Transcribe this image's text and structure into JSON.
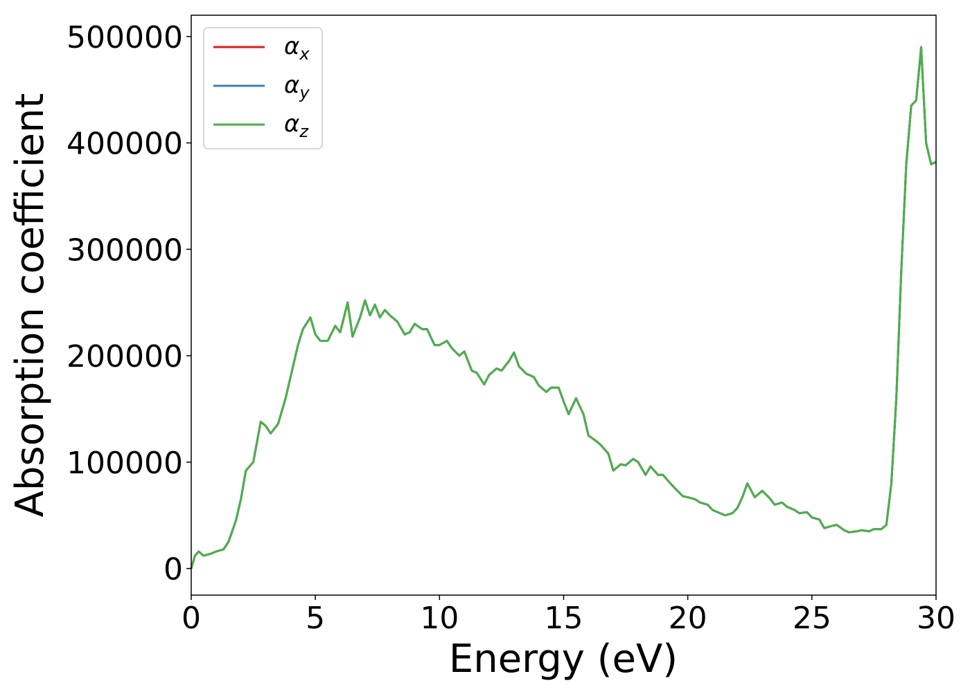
{
  "chart_data": {
    "type": "line",
    "title": "",
    "xlabel": "Energy (eV)",
    "ylabel": "Absorption coefficient",
    "xlim": [
      0,
      30
    ],
    "ylim": [
      -25000,
      520000
    ],
    "x_ticks": [
      0,
      5,
      10,
      15,
      20,
      25,
      30
    ],
    "x_tick_labels": [
      "0",
      "5",
      "10",
      "15",
      "20",
      "25",
      "30"
    ],
    "y_ticks": [
      0,
      100000,
      200000,
      300000,
      400000,
      500000
    ],
    "y_tick_labels": [
      "0",
      "100000",
      "200000",
      "300000",
      "400000",
      "500000"
    ],
    "grid": false,
    "legend_position": "top-left",
    "series": [
      {
        "name": "α_x",
        "legend_symbol": "α",
        "legend_subscript": "x",
        "color": "#e41a1c",
        "x": [
          0,
          0.15,
          0.3,
          0.5,
          0.8,
          1.0,
          1.3,
          1.5,
          1.8,
          2.0,
          2.2,
          2.5,
          2.8,
          3.0,
          3.2,
          3.5,
          3.8,
          4.0,
          4.3,
          4.5,
          4.8,
          5.0,
          5.2,
          5.5,
          5.8,
          6.0,
          6.3,
          6.5,
          6.8,
          7.0,
          7.2,
          7.4,
          7.6,
          7.8,
          8.0,
          8.3,
          8.6,
          8.8,
          9.0,
          9.3,
          9.5,
          9.8,
          10.0,
          10.3,
          10.5,
          10.8,
          11.0,
          11.3,
          11.5,
          11.8,
          12.0,
          12.3,
          12.5,
          12.8,
          13.0,
          13.2,
          13.5,
          13.8,
          14.0,
          14.3,
          14.5,
          14.8,
          15.0,
          15.2,
          15.5,
          15.8,
          16.0,
          16.3,
          16.5,
          16.8,
          17.0,
          17.3,
          17.5,
          17.8,
          18.0,
          18.3,
          18.5,
          18.8,
          19.0,
          19.3,
          19.5,
          19.8,
          20.0,
          20.3,
          20.5,
          20.8,
          21.0,
          21.3,
          21.5,
          21.8,
          22.0,
          22.2,
          22.4,
          22.7,
          23.0,
          23.3,
          23.5,
          23.8,
          24.0,
          24.3,
          24.5,
          24.8,
          25.0,
          25.3,
          25.5,
          25.8,
          26.0,
          26.3,
          26.5,
          26.8,
          27.0,
          27.3,
          27.5,
          27.8,
          28.0,
          28.2,
          28.4,
          28.6,
          28.8,
          29.0,
          29.2,
          29.4,
          29.6,
          29.8,
          30.0
        ],
        "y": [
          0,
          12000,
          16000,
          12000,
          14000,
          16000,
          18000,
          25000,
          45000,
          65000,
          92000,
          100000,
          138000,
          134000,
          127000,
          136000,
          160000,
          180000,
          210000,
          225000,
          236000,
          220000,
          214000,
          214000,
          228000,
          222000,
          250000,
          218000,
          236000,
          252000,
          238000,
          248000,
          236000,
          243000,
          238000,
          232000,
          220000,
          222000,
          230000,
          225000,
          225000,
          210000,
          210000,
          214000,
          207000,
          200000,
          204000,
          186000,
          184000,
          173000,
          182000,
          188000,
          186000,
          195000,
          203000,
          190000,
          183000,
          180000,
          172000,
          166000,
          170000,
          170000,
          157000,
          145000,
          160000,
          145000,
          125000,
          120000,
          116000,
          108000,
          92000,
          98000,
          97000,
          103000,
          100000,
          88000,
          96000,
          88000,
          88000,
          80000,
          75000,
          68000,
          67000,
          65000,
          62000,
          60000,
          55000,
          52000,
          50000,
          52000,
          57000,
          67000,
          80000,
          67000,
          73000,
          66000,
          60000,
          62000,
          58000,
          55000,
          52000,
          53000,
          48000,
          46000,
          38000,
          40000,
          41000,
          36000,
          34000,
          35000,
          36000,
          35000,
          37000,
          37000,
          41000,
          80000,
          160000,
          280000,
          380000,
          435000,
          440000,
          490000,
          400000,
          380000,
          382000
        ]
      },
      {
        "name": "α_y",
        "legend_symbol": "α",
        "legend_subscript": "y",
        "color": "#377eb8",
        "same_as": "α_x"
      },
      {
        "name": "α_z",
        "legend_symbol": "α",
        "legend_subscript": "z",
        "color": "#4daf4a",
        "same_as": "α_x"
      }
    ]
  }
}
